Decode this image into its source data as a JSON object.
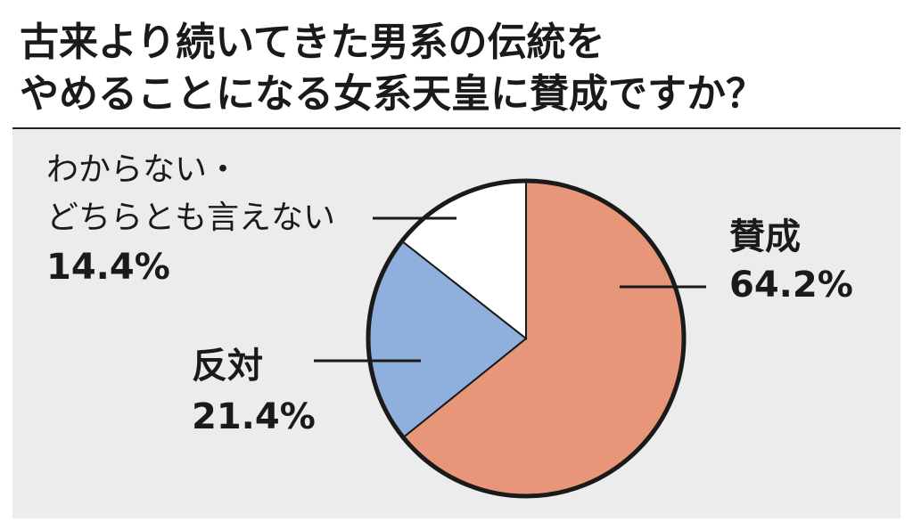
{
  "chart_data": {
    "type": "pie",
    "title": [
      "古来より続いてきた男系の伝統を",
      "やめることになる女系天皇に賛成ですか？"
    ],
    "categories": [
      [
        "賛成"
      ],
      [
        "反対"
      ],
      [
        "わからない・",
        "どちらとも言えない"
      ]
    ],
    "values": [
      64.2,
      21.4,
      14.4
    ],
    "value_labels": [
      "64.2%",
      "21.4%",
      "14.4%"
    ],
    "colors": [
      "#e8967a",
      "#8fb0dc",
      "#ffffff"
    ]
  }
}
